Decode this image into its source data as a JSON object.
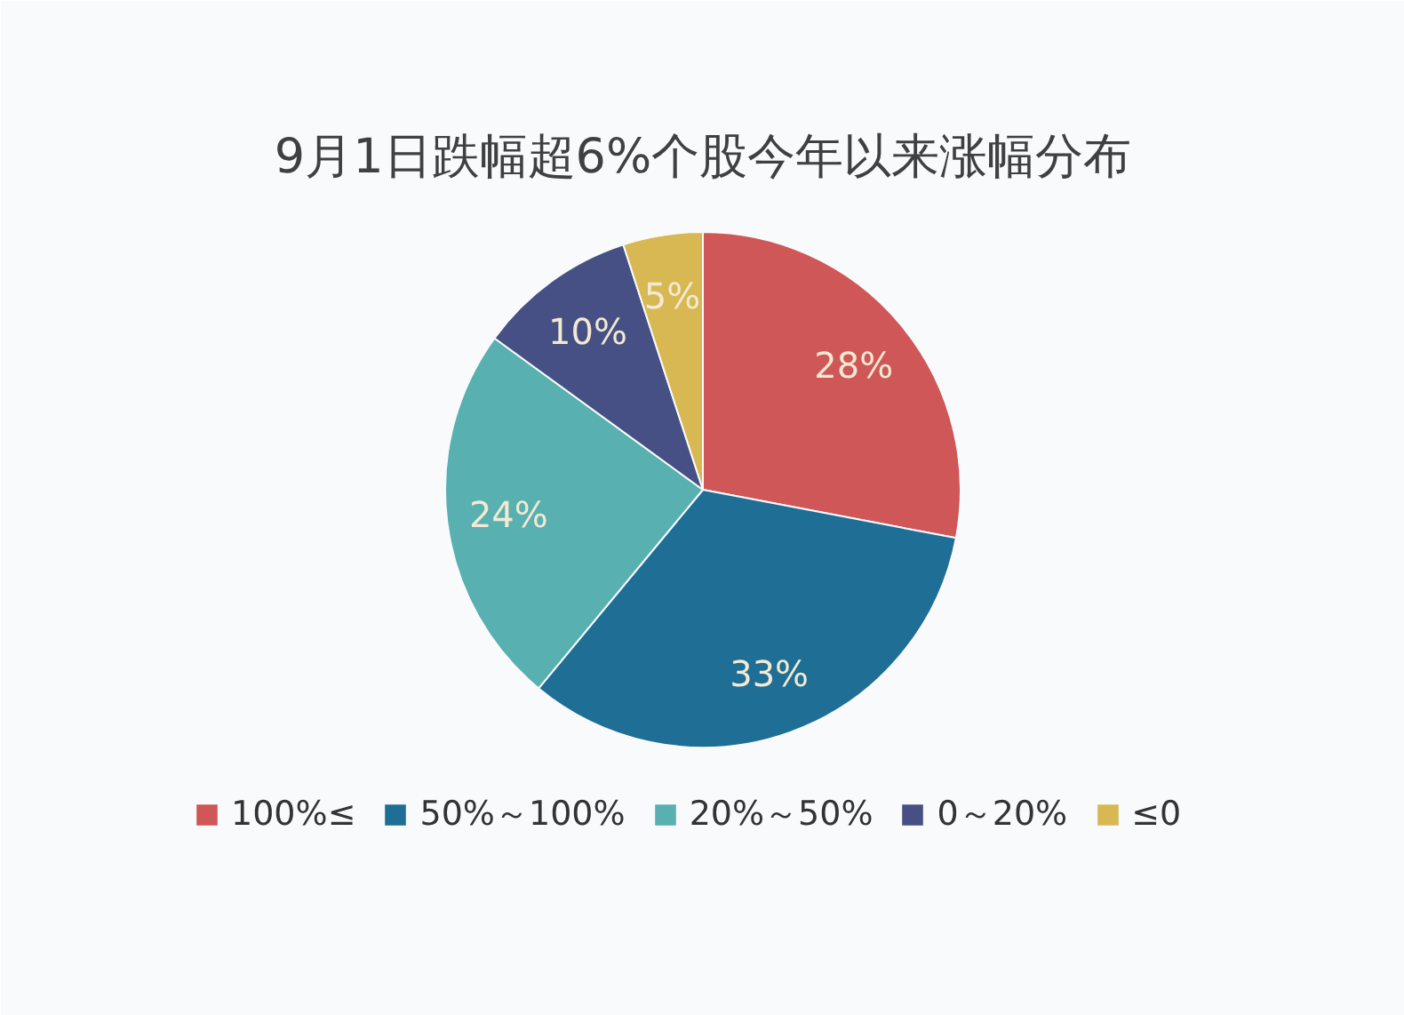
{
  "chart_data": {
    "type": "pie",
    "title": "9月1日跌幅超6%个股今年以来涨幅分布",
    "categories": [
      "100%≤",
      "50%～100%",
      "20%～50%",
      "0～20%",
      "≤0"
    ],
    "values": [
      28,
      33,
      24,
      10,
      5
    ],
    "colors": [
      "#cf5757",
      "#1f6e96",
      "#58b0b0",
      "#465084",
      "#d8b852"
    ],
    "value_labels": [
      "28%",
      "33%",
      "24%",
      "10%",
      "5%"
    ],
    "legend": "bottom"
  }
}
